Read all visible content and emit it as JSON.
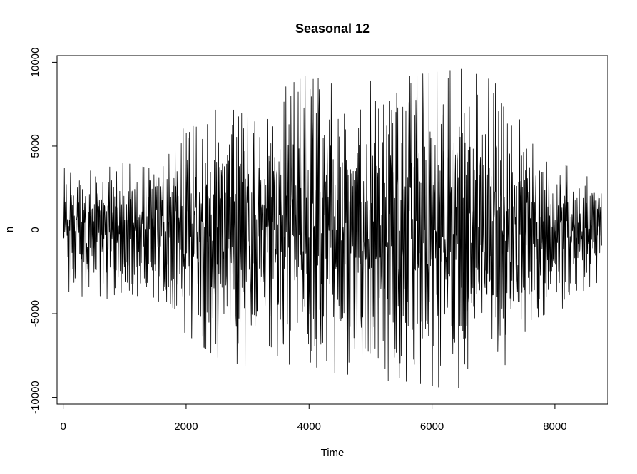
{
  "chart_data": {
    "type": "line",
    "title": "Seasonal 12",
    "xlabel": "Time",
    "ylabel": "n",
    "xlim": [
      -100,
      8860
    ],
    "ylim": [
      -10400,
      10400
    ],
    "x_ticks": [
      0,
      2000,
      4000,
      6000,
      8000
    ],
    "x_tick_labels": [
      "0",
      "2000",
      "4000",
      "6000",
      "8000"
    ],
    "y_ticks": [
      -10000,
      -5000,
      0,
      5000,
      10000
    ],
    "y_tick_labels": [
      "-10000",
      "-5000",
      "0",
      "5000",
      "10000"
    ],
    "grid": false,
    "legend": "none",
    "series_color": "#000000",
    "series": [
      {
        "x": [
          0,
          500,
          1000,
          1500,
          1700,
          2000,
          2500,
          3000,
          3200,
          3500,
          4000,
          4500,
          5000,
          5500,
          6000,
          6500,
          7000,
          7400,
          7600,
          8000,
          8200,
          8500,
          8760
        ],
        "upper": [
          3700,
          3500,
          4000,
          3600,
          5200,
          6200,
          7200,
          7800,
          5500,
          8300,
          9300,
          8500,
          8900,
          9100,
          9400,
          9600,
          8900,
          6800,
          5200,
          4500,
          3800,
          3200,
          3000
        ],
        "lower": [
          -4200,
          -3800,
          -4500,
          -4000,
          -5300,
          -6200,
          -7600,
          -8200,
          -5200,
          -8600,
          -8800,
          -8500,
          -9000,
          -9000,
          -9300,
          -9700,
          -9000,
          -7000,
          -5400,
          -4800,
          -4600,
          -3500,
          -3000
        ]
      }
    ]
  }
}
